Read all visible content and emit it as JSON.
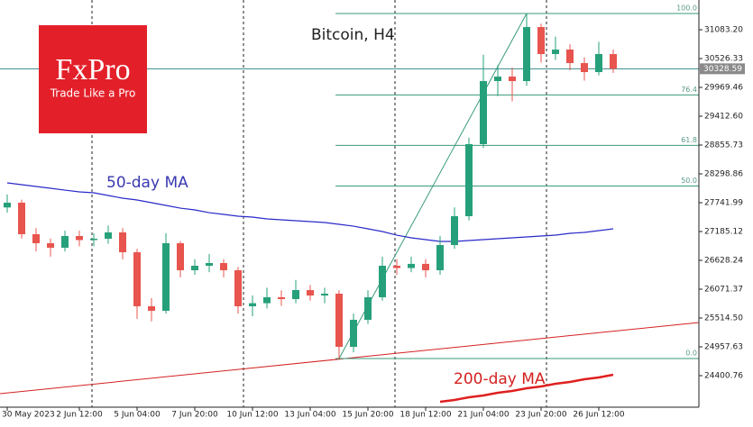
{
  "chart_data": {
    "type": "candlestick",
    "title": "Bitcoin, H4",
    "categories": [
      "30 May 2023",
      null,
      null,
      null,
      null,
      "2 Jun 12:00",
      null,
      null,
      null,
      "5 Jun 04:00",
      null,
      null,
      null,
      "7 Jun 20:00",
      null,
      null,
      null,
      "10 Jun 12:00",
      null,
      null,
      null,
      "13 Jun 04:00",
      null,
      null,
      null,
      "15 Jun 20:00",
      null,
      null,
      null,
      "18 Jun 12:00",
      null,
      null,
      null,
      "21 Jun 04:00",
      null,
      null,
      null,
      "23 Jun 20:00",
      null,
      null,
      null,
      "26 Jun 12:00",
      null
    ],
    "open": [
      27650,
      27742,
      27133,
      26959,
      26872,
      27098,
      27020,
      27046,
      27168,
      26785,
      25741,
      25654,
      26959,
      26437,
      26524,
      26576,
      26437,
      25741,
      25800,
      25915,
      25880,
      26054,
      25949,
      25984,
      24957,
      25480,
      25915,
      26524,
      26480,
      26560,
      26437,
      26924,
      27481,
      28873,
      30091,
      30178,
      30091,
      31135,
      30613,
      30700,
      30439,
      30265,
      30613
    ],
    "high": [
      27900,
      27800,
      27250,
      27050,
      27200,
      27200,
      27150,
      27300,
      27250,
      26850,
      25900,
      27150,
      27000,
      26650,
      26750,
      26650,
      26500,
      25950,
      26100,
      26050,
      26250,
      26150,
      26100,
      26050,
      25600,
      26050,
      26700,
      26650,
      26700,
      26650,
      27100,
      27650,
      29000,
      30600,
      30400,
      30350,
      31396,
      31200,
      30950,
      30800,
      30550,
      30850,
      30700
    ],
    "low": [
      27550,
      27050,
      26800,
      26700,
      26800,
      26900,
      26900,
      26950,
      26650,
      25500,
      25450,
      25600,
      26300,
      26350,
      26400,
      26300,
      25600,
      25550,
      25700,
      25750,
      25800,
      25850,
      25800,
      24731,
      24850,
      25400,
      25850,
      26350,
      26400,
      26300,
      26350,
      26850,
      27400,
      28800,
      29800,
      29700,
      30000,
      30450,
      30500,
      30300,
      30100,
      30200,
      30250
    ],
    "close": [
      27742,
      27133,
      26959,
      26872,
      27098,
      27020,
      27046,
      27168,
      26785,
      25741,
      25654,
      26959,
      26437,
      26524,
      26576,
      26437,
      25741,
      25800,
      25915,
      25880,
      26054,
      25949,
      25984,
      24957,
      25480,
      25915,
      26524,
      26480,
      26560,
      26437,
      26924,
      27481,
      28873,
      30091,
      30178,
      30091,
      31135,
      30613,
      30700,
      30439,
      30265,
      30613,
      30329
    ],
    "up_color": "#26a07a",
    "down_color": "#e8544e",
    "series": [
      {
        "name": "50-day MA",
        "color": "#2a2ac8",
        "values": [
          28125,
          28090,
          28055,
          28020,
          27985,
          27951,
          27933,
          27881,
          27829,
          27794,
          27742,
          27690,
          27637,
          27603,
          27550,
          27516,
          27481,
          27463,
          27429,
          27411,
          27394,
          27376,
          27359,
          27324,
          27289,
          27237,
          27185,
          27115,
          27063,
          27028,
          26994,
          26994,
          27011,
          27028,
          27046,
          27063,
          27081,
          27098,
          27115,
          27150,
          27168,
          27202,
          27237
        ]
      },
      {
        "name": "200-day MA",
        "color": "#e02020",
        "values": [
          null,
          null,
          null,
          null,
          null,
          null,
          null,
          null,
          null,
          null,
          null,
          null,
          null,
          null,
          null,
          null,
          null,
          null,
          null,
          null,
          null,
          null,
          null,
          null,
          null,
          null,
          null,
          null,
          null,
          null,
          23896,
          23931,
          23983,
          24018,
          24070,
          24105,
          24157,
          24192,
          24244,
          24279,
          24331,
          24366,
          24418
        ]
      }
    ],
    "last_price": 30328.59,
    "fibonacci": {
      "start": 23,
      "end": 36,
      "levels": [
        {
          "value": 31396,
          "label": "100.0"
        },
        {
          "value": 29823,
          "label": "76.4"
        },
        {
          "value": 28850,
          "label": "61.8"
        },
        {
          "value": 28064,
          "label": "50.0"
        },
        {
          "value": 24731,
          "label": "0.0"
        }
      ]
    },
    "ylim": [
      23791.7,
      31657.5
    ],
    "yticks": [
      {
        "value": 31083.2,
        "label": "31083.20"
      },
      30526.33,
      29969.46,
      {
        "value": 29412.6,
        "label": "29412.60"
      },
      28855.73,
      28298.86,
      27741.99,
      27185.12,
      26628.24,
      26071.37,
      {
        "value": 25514.5,
        "label": "25514.50"
      },
      24957.63,
      24400.76
    ]
  },
  "logo": {
    "name": "FxPro",
    "tagline": "Trade Like a Pro"
  }
}
